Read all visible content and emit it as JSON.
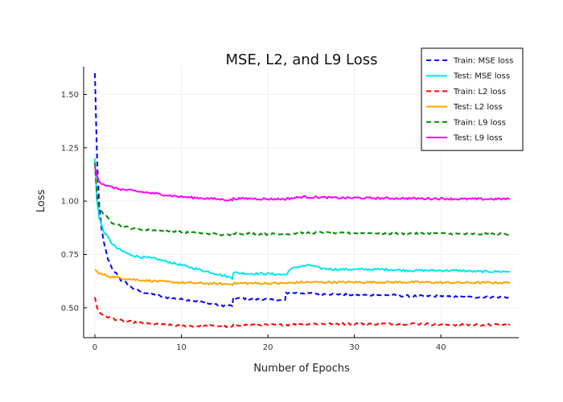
{
  "chart_data": {
    "type": "line",
    "title": "MSE, L2, and L9 Loss",
    "xlabel": "Number of Epochs",
    "ylabel": "Loss",
    "xlim": [
      -1.3,
      49
    ],
    "ylim": [
      0.36,
      1.63
    ],
    "xticks": [
      0,
      10,
      20,
      30,
      40
    ],
    "yticks": [
      0.5,
      0.75,
      1.0,
      1.25,
      1.5
    ],
    "xtick_labels": [
      "0",
      "10",
      "20",
      "30",
      "40"
    ],
    "ytick_labels": [
      "0.50",
      "0.75",
      "1.00",
      "1.25",
      "1.50"
    ],
    "grid": true,
    "legend_position": "top-right",
    "series": [
      {
        "name": "Train: MSE loss",
        "color": "#0000ff",
        "dash": "dashed",
        "x": [
          0,
          0.25,
          0.5,
          0.75,
          1,
          1.5,
          2,
          2.5,
          3,
          3.5,
          4,
          5,
          6,
          7,
          8,
          9,
          10,
          11,
          12,
          13,
          14,
          15,
          15.9,
          16,
          17,
          18,
          19,
          20,
          21,
          22,
          22.1,
          24,
          26,
          28,
          30,
          32,
          34,
          36,
          38,
          40,
          42,
          44,
          46,
          48
        ],
        "y": [
          1.6,
          1.2,
          0.98,
          0.88,
          0.81,
          0.73,
          0.68,
          0.66,
          0.63,
          0.62,
          0.6,
          0.58,
          0.57,
          0.56,
          0.55,
          0.545,
          0.54,
          0.535,
          0.53,
          0.52,
          0.515,
          0.51,
          0.51,
          0.545,
          0.545,
          0.54,
          0.54,
          0.54,
          0.535,
          0.535,
          0.57,
          0.57,
          0.565,
          0.565,
          0.56,
          0.56,
          0.56,
          0.555,
          0.555,
          0.555,
          0.55,
          0.55,
          0.55,
          0.55
        ]
      },
      {
        "name": "Test: MSE loss",
        "color": "#00e5ee",
        "dash": "solid",
        "x": [
          0,
          0.25,
          0.5,
          1,
          1.5,
          2,
          2.5,
          3,
          4,
          5,
          6,
          7,
          8,
          10,
          12,
          14,
          15.9,
          16,
          18,
          20,
          22,
          23,
          24,
          25,
          26,
          28,
          30,
          32,
          34,
          36,
          38,
          40,
          42,
          44,
          46,
          47.5,
          48
        ],
        "y": [
          1.2,
          1.0,
          0.92,
          0.86,
          0.83,
          0.8,
          0.78,
          0.77,
          0.75,
          0.74,
          0.735,
          0.73,
          0.72,
          0.7,
          0.68,
          0.66,
          0.64,
          0.665,
          0.66,
          0.66,
          0.655,
          0.69,
          0.695,
          0.7,
          0.685,
          0.68,
          0.68,
          0.68,
          0.68,
          0.675,
          0.675,
          0.675,
          0.675,
          0.67,
          0.67,
          0.67,
          0.67
        ]
      },
      {
        "name": "Train: L2 loss",
        "color": "#ff0000",
        "dash": "dashed",
        "x": [
          0,
          0.25,
          0.5,
          1,
          2,
          3,
          4,
          5,
          6,
          8,
          10,
          12,
          14,
          15.9,
          16,
          18,
          20,
          22,
          24,
          26,
          28,
          30,
          32,
          34,
          36,
          38,
          40,
          42,
          44,
          46,
          48
        ],
        "y": [
          0.55,
          0.5,
          0.48,
          0.465,
          0.45,
          0.44,
          0.435,
          0.43,
          0.425,
          0.42,
          0.415,
          0.415,
          0.415,
          0.41,
          0.42,
          0.42,
          0.42,
          0.42,
          0.425,
          0.425,
          0.425,
          0.425,
          0.425,
          0.425,
          0.425,
          0.425,
          0.42,
          0.42,
          0.42,
          0.42,
          0.42
        ]
      },
      {
        "name": "Test: L2 loss",
        "color": "#ffa500",
        "dash": "solid",
        "x": [
          0,
          0.5,
          1,
          2,
          3,
          4,
          5,
          6,
          8,
          10,
          12,
          14,
          15.9,
          16,
          18,
          20,
          22,
          24,
          26,
          28,
          30,
          32,
          34,
          36,
          38,
          40,
          42,
          44,
          46,
          48
        ],
        "y": [
          0.68,
          0.66,
          0.655,
          0.645,
          0.64,
          0.635,
          0.63,
          0.628,
          0.622,
          0.618,
          0.615,
          0.613,
          0.61,
          0.615,
          0.615,
          0.615,
          0.615,
          0.62,
          0.62,
          0.62,
          0.62,
          0.62,
          0.62,
          0.62,
          0.62,
          0.618,
          0.618,
          0.618,
          0.618,
          0.618
        ]
      },
      {
        "name": "Train: L9 loss",
        "color": "#008b00",
        "dash": "dashed",
        "x": [
          0,
          0.25,
          0.5,
          1,
          1.5,
          2,
          3,
          4,
          5,
          6,
          8,
          10,
          12,
          14,
          15.9,
          16,
          18,
          20,
          22,
          24,
          26,
          28,
          30,
          32,
          34,
          36,
          38,
          40,
          42,
          44,
          46,
          48
        ],
        "y": [
          1.18,
          1.02,
          0.97,
          0.94,
          0.92,
          0.9,
          0.885,
          0.875,
          0.87,
          0.865,
          0.86,
          0.855,
          0.85,
          0.845,
          0.84,
          0.85,
          0.848,
          0.845,
          0.845,
          0.852,
          0.852,
          0.85,
          0.85,
          0.85,
          0.848,
          0.848,
          0.848,
          0.848,
          0.846,
          0.846,
          0.846,
          0.845
        ]
      },
      {
        "name": "Test: L9 loss",
        "color": "#ff00ff",
        "dash": "solid",
        "x": [
          0,
          0.25,
          0.5,
          1,
          1.5,
          2,
          3,
          4,
          5,
          6,
          8,
          10,
          12,
          14,
          15.9,
          16,
          18,
          20,
          22,
          24,
          26,
          28,
          30,
          32,
          34,
          36,
          38,
          40,
          42,
          44,
          46,
          48
        ],
        "y": [
          1.16,
          1.12,
          1.09,
          1.08,
          1.07,
          1.065,
          1.055,
          1.05,
          1.045,
          1.04,
          1.03,
          1.02,
          1.015,
          1.01,
          1.005,
          1.012,
          1.012,
          1.01,
          1.01,
          1.02,
          1.018,
          1.015,
          1.015,
          1.014,
          1.013,
          1.013,
          1.012,
          1.012,
          1.01,
          1.01,
          1.01,
          1.01
        ]
      }
    ]
  }
}
